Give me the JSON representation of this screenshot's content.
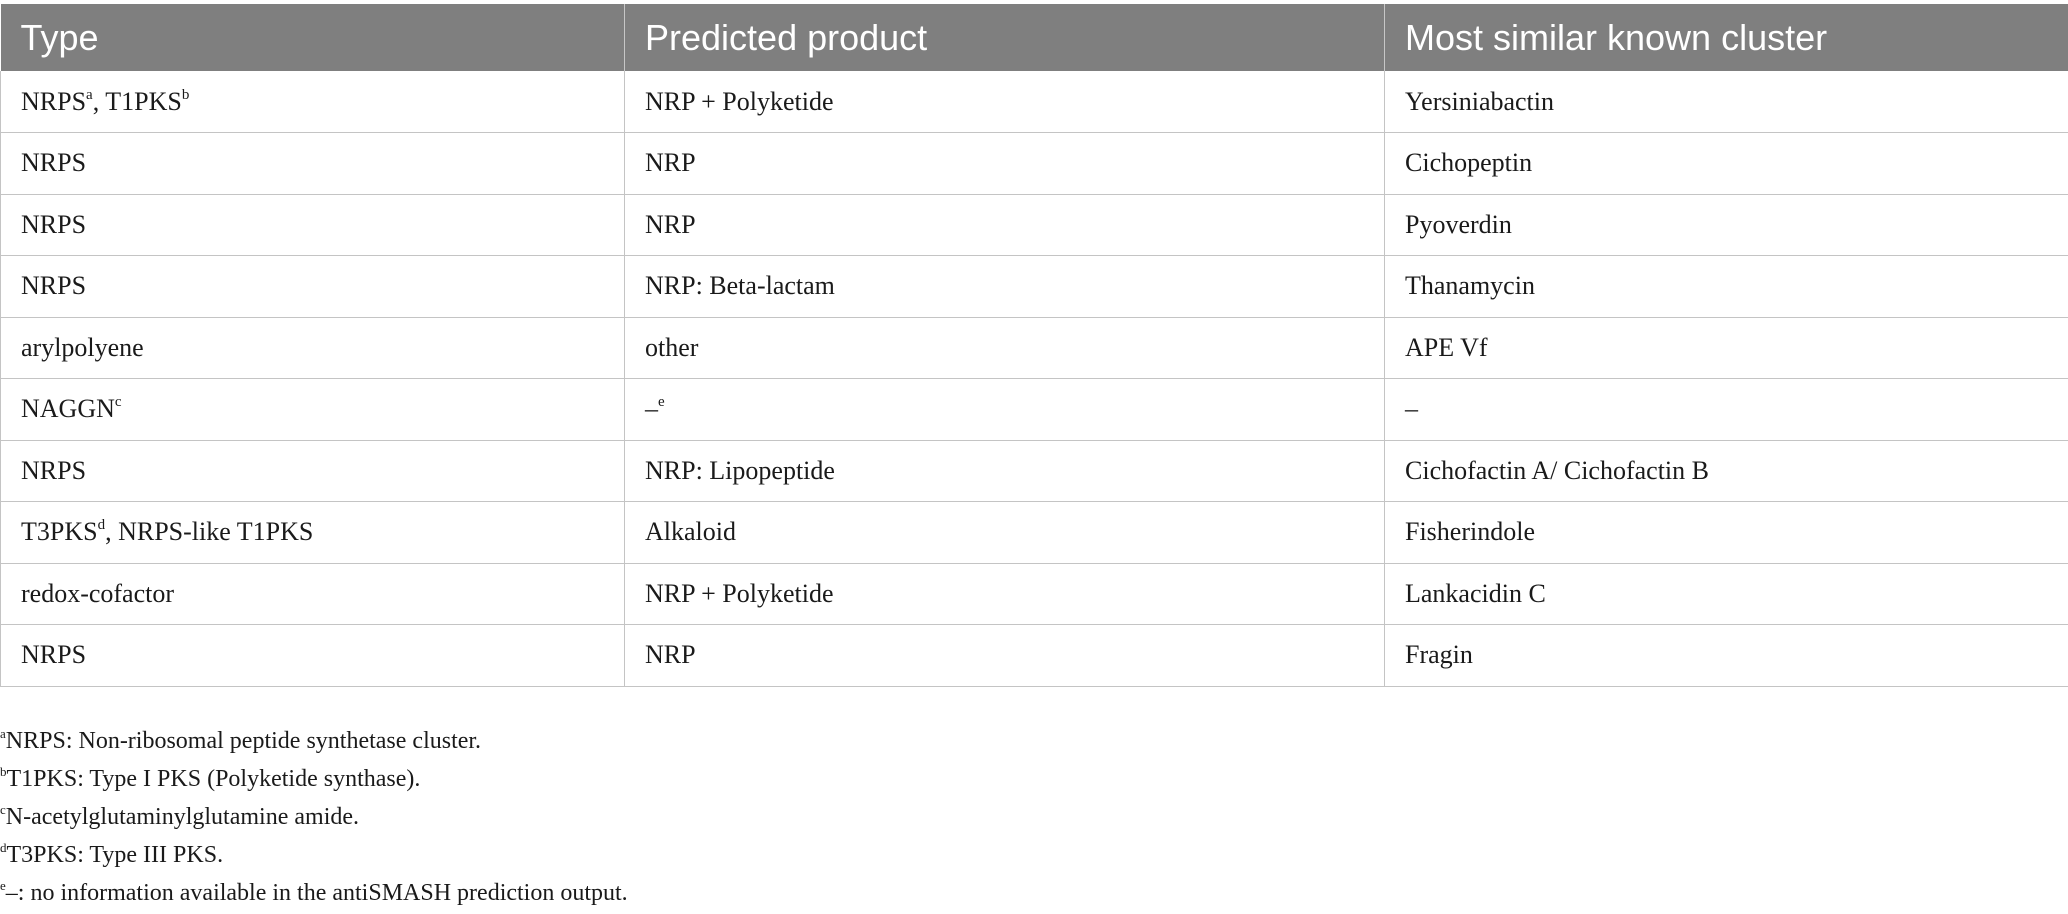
{
  "table": {
    "headers": [
      "Type",
      "Predicted product",
      "Most similar known cluster"
    ],
    "rows": [
      {
        "type": "NRPS",
        "type_sup": "a",
        "type_sep": ", ",
        "type_b": "T1PKS",
        "type_b_sup": "b",
        "type_tail": "",
        "product": "NRP + Polyketide",
        "product_sup": "",
        "cluster": "Yersiniabactin"
      },
      {
        "type": "NRPS",
        "type_sup": "",
        "type_sep": "",
        "type_b": "",
        "type_b_sup": "",
        "type_tail": "",
        "product": "NRP",
        "product_sup": "",
        "cluster": "Cichopeptin"
      },
      {
        "type": "NRPS",
        "type_sup": "",
        "type_sep": "",
        "type_b": "",
        "type_b_sup": "",
        "type_tail": "",
        "product": "NRP",
        "product_sup": "",
        "cluster": "Pyoverdin"
      },
      {
        "type": "NRPS",
        "type_sup": "",
        "type_sep": "",
        "type_b": "",
        "type_b_sup": "",
        "type_tail": "",
        "product": "NRP: Beta-lactam",
        "product_sup": "",
        "cluster": "Thanamycin"
      },
      {
        "type": "arylpolyene",
        "type_sup": "",
        "type_sep": "",
        "type_b": "",
        "type_b_sup": "",
        "type_tail": "",
        "product": "other",
        "product_sup": "",
        "cluster": "APE Vf"
      },
      {
        "type": "NAGGN",
        "type_sup": "c",
        "type_sep": "",
        "type_b": "",
        "type_b_sup": "",
        "type_tail": "",
        "product": "–",
        "product_sup": "e",
        "cluster": "–"
      },
      {
        "type": "NRPS",
        "type_sup": "",
        "type_sep": "",
        "type_b": "",
        "type_b_sup": "",
        "type_tail": "",
        "product": "NRP: Lipopeptide",
        "product_sup": "",
        "cluster": "Cichofactin A/ Cichofactin B"
      },
      {
        "type": "T3PKS",
        "type_sup": "d",
        "type_sep": ", ",
        "type_b": "NRPS-like T1PKS",
        "type_b_sup": "",
        "type_tail": "",
        "product": "Alkaloid",
        "product_sup": "",
        "cluster": "Fisherindole"
      },
      {
        "type": "redox-cofactor",
        "type_sup": "",
        "type_sep": "",
        "type_b": "",
        "type_b_sup": "",
        "type_tail": "",
        "product": "NRP + Polyketide",
        "product_sup": "",
        "cluster": "Lankacidin C"
      },
      {
        "type": "NRPS",
        "type_sup": "",
        "type_sep": "",
        "type_b": "",
        "type_b_sup": "",
        "type_tail": "",
        "product": "NRP",
        "product_sup": "",
        "cluster": "Fragin"
      }
    ]
  },
  "footnotes": [
    {
      "mark": "a",
      "text": "NRPS: Non-ribosomal peptide synthetase cluster."
    },
    {
      "mark": "b",
      "text": "T1PKS: Type I PKS (Polyketide synthase)."
    },
    {
      "mark": "c",
      "text": "N-acetylglutaminylglutamine amide."
    },
    {
      "mark": "d",
      "text": "T3PKS: Type III PKS."
    },
    {
      "mark": "e",
      "text": "–: no information available in the antiSMASH prediction output."
    }
  ]
}
